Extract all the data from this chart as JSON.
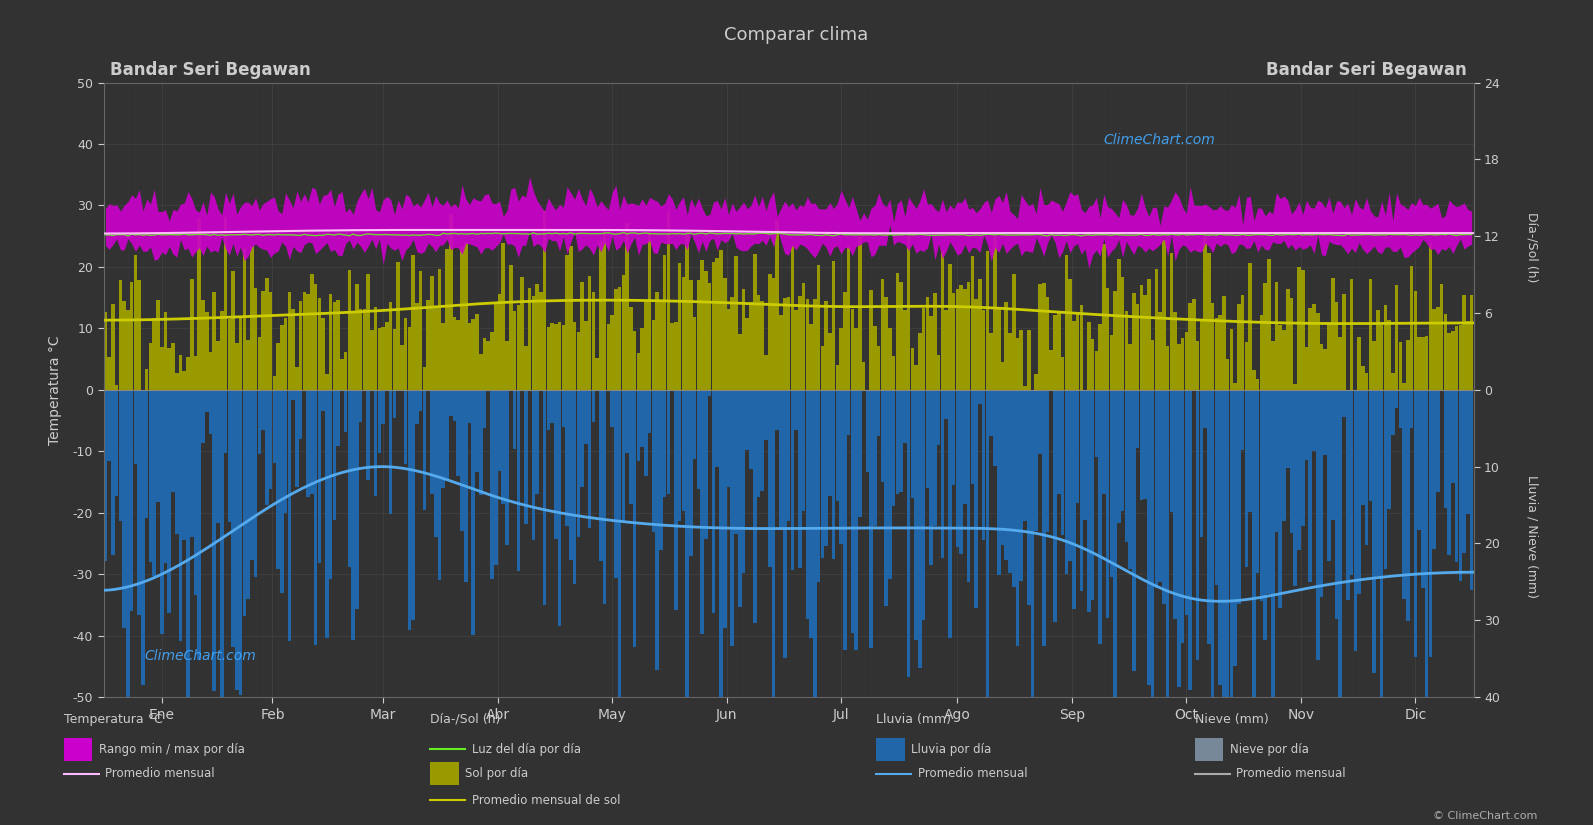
{
  "title": "Comparar clima",
  "location_left": "Bandar Seri Begawan",
  "location_right": "Bandar Seri Begawan",
  "background_color": "#323232",
  "plot_bg_color": "#323232",
  "text_color": "#cccccc",
  "months": [
    "Ene",
    "Feb",
    "Mar",
    "Abr",
    "May",
    "Jun",
    "Jul",
    "Ago",
    "Sep",
    "Oct",
    "Nov",
    "Dic"
  ],
  "month_lengths": [
    31,
    28,
    31,
    30,
    31,
    30,
    31,
    31,
    30,
    31,
    30,
    31
  ],
  "ylim_left": [
    -50,
    50
  ],
  "temp_min_monthly": [
    23.0,
    23.0,
    23.0,
    23.5,
    23.5,
    23.5,
    23.0,
    23.0,
    23.0,
    23.0,
    23.0,
    23.0
  ],
  "temp_max_monthly": [
    30.0,
    30.5,
    31.0,
    31.0,
    31.0,
    30.5,
    30.0,
    30.0,
    30.0,
    30.0,
    30.0,
    30.0
  ],
  "temp_avg_monthly": [
    25.5,
    25.8,
    26.0,
    26.0,
    26.0,
    25.8,
    25.5,
    25.5,
    25.5,
    25.5,
    25.5,
    25.5
  ],
  "daylight_monthly": [
    12.1,
    12.1,
    12.1,
    12.2,
    12.2,
    12.2,
    12.1,
    12.1,
    12.1,
    12.1,
    12.1,
    12.1
  ],
  "sun_hours_monthly": [
    5.5,
    5.8,
    6.2,
    6.8,
    7.0,
    6.8,
    6.5,
    6.5,
    6.0,
    5.5,
    5.2,
    5.2
  ],
  "rain_avg_monthly": [
    24,
    15,
    10,
    14,
    17,
    18,
    18,
    18,
    20,
    27,
    26,
    24
  ],
  "temp_range_color": "#cc00cc",
  "temp_range_noise": 1.0,
  "temp_max_noise": 1.2,
  "temp_avg_color": "#ffbbff",
  "daylight_color": "#66ee22",
  "sun_bar_color": "#999900",
  "sun_bar_noise": 3.0,
  "sun_avg_color": "#cccc00",
  "rain_bar_color": "#2266aa",
  "rain_bar_noise": 12.0,
  "rain_avg_color": "#55aaee",
  "snow_bar_color": "#778899",
  "grid_color": "#4a4a4a",
  "sun_scale": 2.0833,
  "rain_scale": 1.25,
  "watermark_color": "#44aaff",
  "watermark": "ClimeChart.com",
  "copyright": "© ClimeChart.com",
  "right_sun_ticks": [
    0,
    6,
    12,
    18,
    24
  ],
  "right_rain_ticks": [
    0,
    10,
    20,
    30,
    40
  ],
  "left_ticks": [
    -50,
    -40,
    -30,
    -20,
    -10,
    0,
    10,
    20,
    30,
    40,
    50
  ],
  "legend_headers": {
    "temp": "Temperatura °C",
    "sun": "Día-/Sol (h)",
    "rain": "Lluvia (mm)",
    "snow": "Nieve (mm)"
  },
  "legend_items": {
    "temp_range": "Rango min / max por día",
    "temp_avg": "Promedio mensual",
    "daylight": "Luz del día por día",
    "sun_bar": "Sol por día",
    "sun_avg": "Promedio mensual de sol",
    "rain_bar": "Lluvia por día",
    "rain_avg_label": "Promedio mensual",
    "snow_bar": "Nieve por día",
    "snow_avg": "Promedio mensual"
  }
}
